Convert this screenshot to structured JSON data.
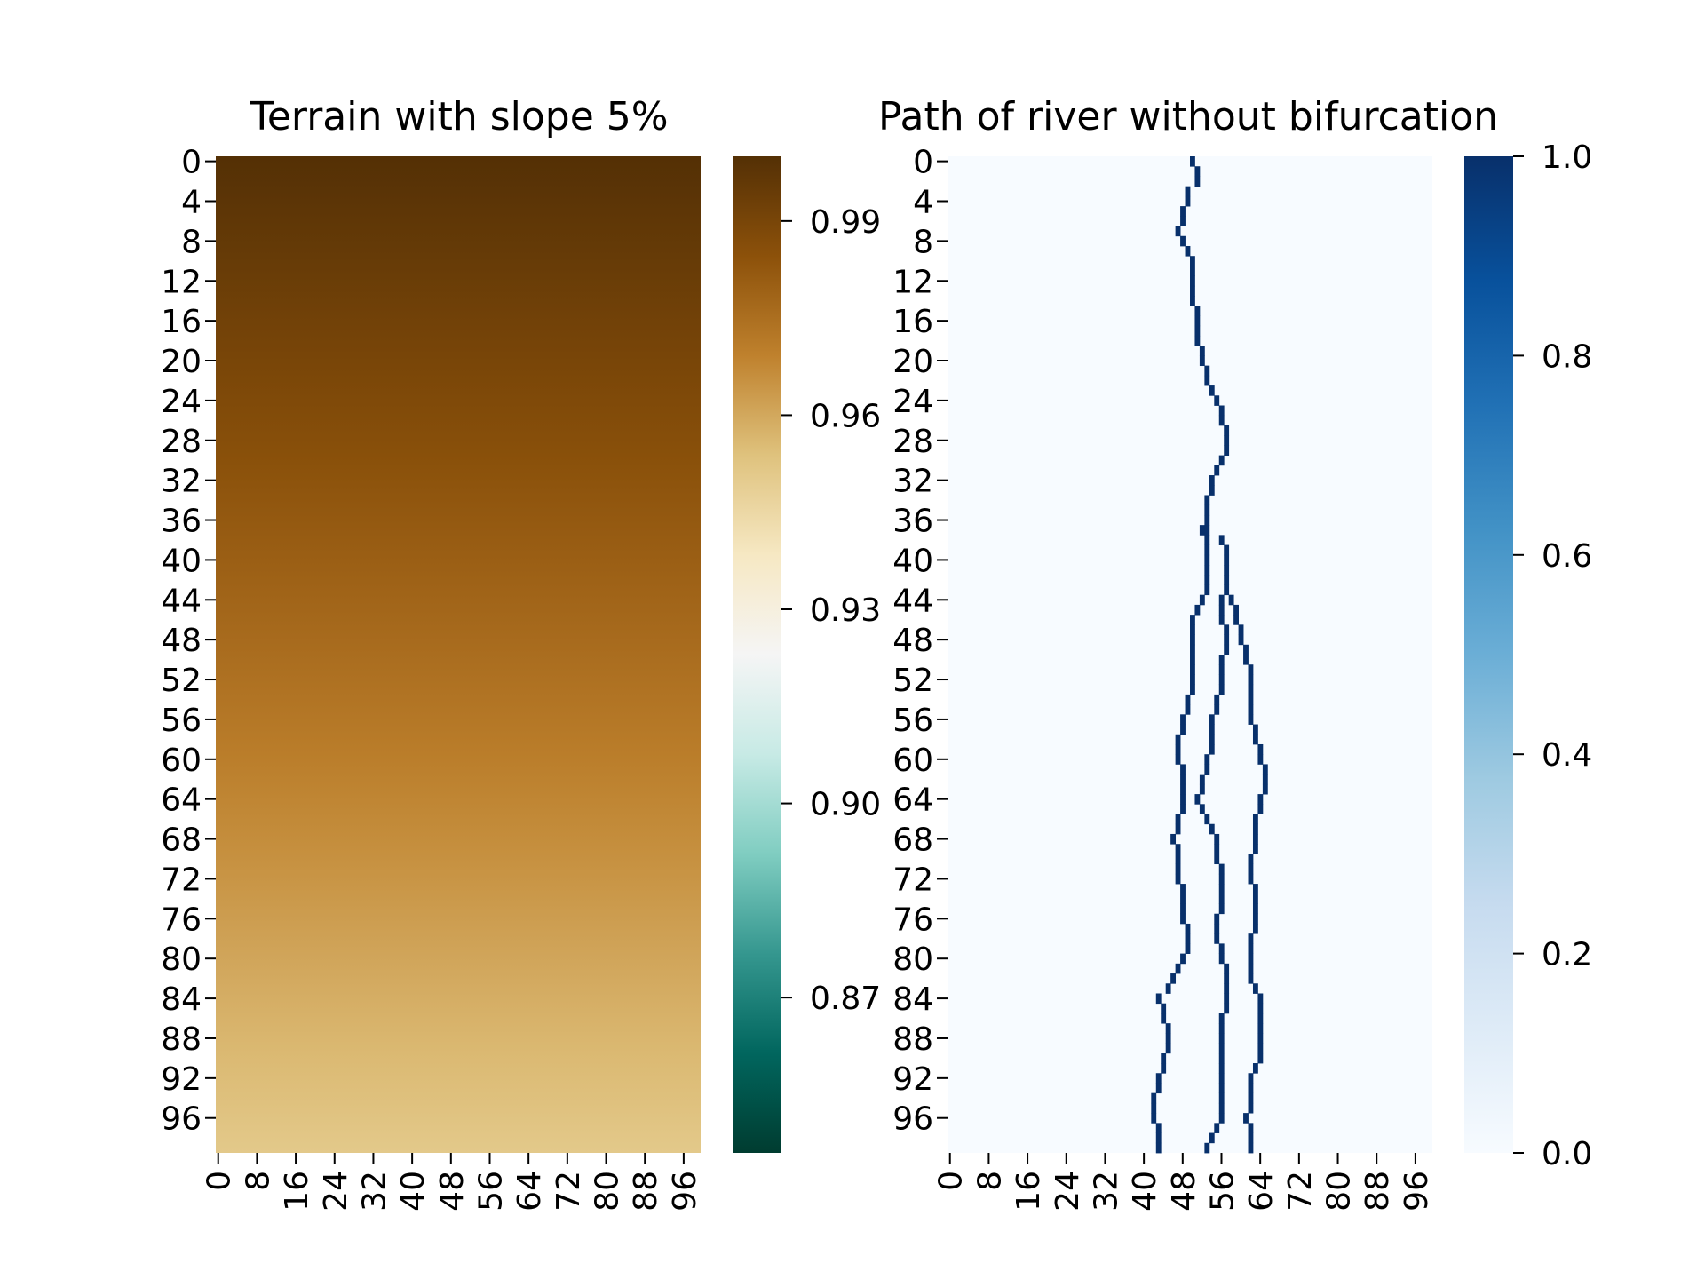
{
  "chart_data": [
    {
      "type": "heatmap",
      "title": "Terrain with slope 5%",
      "xlabel": "",
      "ylabel": "",
      "rows": 100,
      "cols": 100,
      "x_tick_labels": [
        "0",
        "8",
        "16",
        "24",
        "32",
        "40",
        "48",
        "56",
        "64",
        "72",
        "80",
        "88",
        "96"
      ],
      "y_tick_labels": [
        "0",
        "4",
        "8",
        "12",
        "16",
        "20",
        "24",
        "28",
        "32",
        "36",
        "40",
        "44",
        "48",
        "52",
        "56",
        "60",
        "64",
        "68",
        "72",
        "76",
        "80",
        "84",
        "88",
        "92",
        "96"
      ],
      "value_at_row_0": 1.0,
      "value_at_row_99": 0.951,
      "colormap": "BrBG",
      "colorbar": {
        "min": 0.846,
        "max": 1.0,
        "ticks": [
          "0.87",
          "0.90",
          "0.93",
          "0.96",
          "0.99"
        ]
      }
    },
    {
      "type": "heatmap",
      "title": "Path of river without bifurcation",
      "xlabel": "",
      "ylabel": "",
      "rows": 100,
      "cols": 100,
      "x_tick_labels": [
        "0",
        "8",
        "16",
        "24",
        "32",
        "40",
        "48",
        "56",
        "64",
        "72",
        "80",
        "88",
        "96"
      ],
      "y_tick_labels": [
        "0",
        "4",
        "8",
        "12",
        "16",
        "20",
        "24",
        "28",
        "32",
        "36",
        "40",
        "44",
        "48",
        "52",
        "56",
        "60",
        "64",
        "68",
        "72",
        "76",
        "80",
        "84",
        "88",
        "92",
        "96"
      ],
      "colormap": "Blues",
      "colorbar": {
        "min": 0.0,
        "max": 1.0,
        "ticks": [
          "0.0",
          "0.2",
          "0.4",
          "0.6",
          "0.8",
          "1.0"
        ]
      },
      "river_paths": [
        {
          "key_rows": [
            0,
            2,
            3,
            5,
            7,
            8,
            10,
            12,
            14,
            16,
            18,
            20,
            22,
            24,
            26,
            28,
            30,
            32,
            34,
            36,
            37,
            38,
            40,
            42,
            44,
            46,
            48,
            50,
            52,
            54,
            56,
            58,
            60,
            62,
            64,
            66,
            68,
            70,
            72,
            74,
            76,
            78,
            80,
            82,
            84,
            86,
            88,
            90,
            92,
            94,
            96,
            98,
            99
          ],
          "cols": [
            50,
            51,
            49,
            48,
            47,
            48,
            50,
            50,
            50,
            51,
            51,
            52,
            53,
            55,
            56,
            57,
            56,
            54,
            53,
            53,
            52,
            53,
            53,
            53,
            52,
            50,
            50,
            50,
            50,
            49,
            48,
            47,
            47,
            48,
            48,
            47,
            46,
            47,
            47,
            48,
            48,
            49,
            48,
            46,
            43,
            44,
            45,
            44,
            43,
            42,
            42,
            43,
            43
          ]
        },
        {
          "key_rows": [
            37,
            38,
            40,
            42,
            44,
            46,
            48,
            50,
            52,
            54,
            56,
            58,
            60,
            62,
            64,
            66,
            68,
            70,
            72,
            74,
            76,
            78,
            80,
            82,
            84,
            86,
            88,
            90,
            92,
            94,
            96,
            98,
            99
          ],
          "cols": [
            53,
            56,
            57,
            57,
            56,
            56,
            57,
            56,
            56,
            55,
            54,
            54,
            53,
            52,
            51,
            53,
            55,
            55,
            56,
            56,
            55,
            55,
            56,
            57,
            57,
            56,
            56,
            56,
            56,
            56,
            56,
            54,
            53
          ]
        },
        {
          "key_rows": [
            44,
            46,
            48,
            50,
            52,
            54,
            56,
            58,
            60,
            62,
            64,
            66,
            68,
            70,
            72,
            74,
            76,
            78,
            80,
            82,
            84,
            86,
            88,
            90,
            92,
            94,
            96,
            98,
            99
          ],
          "cols": [
            58,
            59,
            60,
            61,
            62,
            62,
            62,
            63,
            64,
            65,
            64,
            63,
            63,
            62,
            62,
            63,
            63,
            62,
            62,
            62,
            64,
            64,
            64,
            64,
            62,
            62,
            61,
            62,
            62
          ]
        }
      ]
    }
  ]
}
